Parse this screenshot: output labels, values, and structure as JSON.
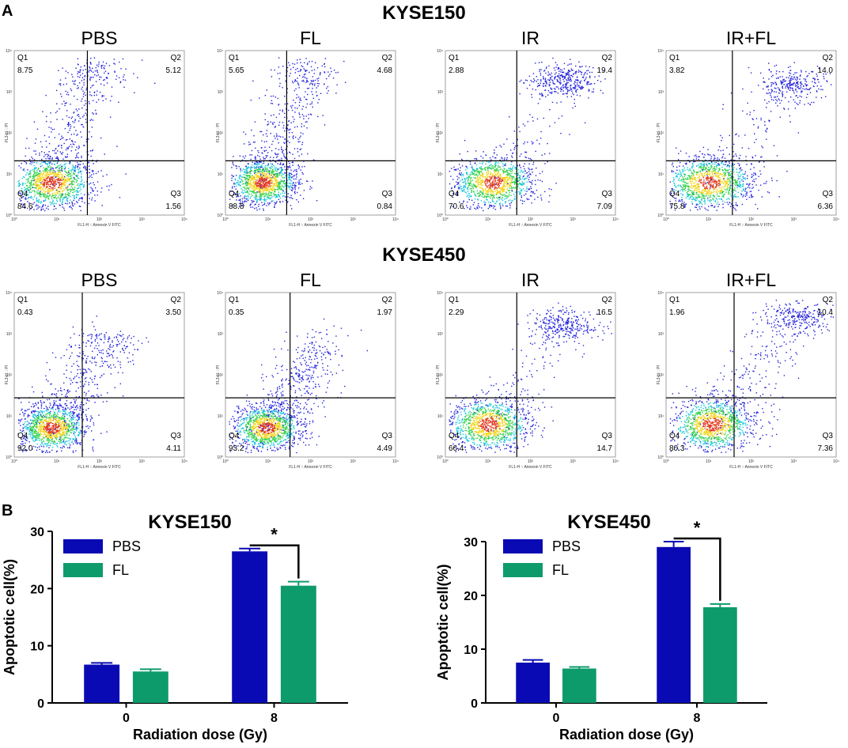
{
  "panel_a_label": "A",
  "panel_b_label": "B",
  "flow_axis": {
    "xlabel": "FL1-H :: Annexin V FITC",
    "ylabel": "FL3-H :: PI",
    "ticks": [
      "10⁰",
      "10¹",
      "10²",
      "10³",
      "10⁴"
    ]
  },
  "flow_rows": [
    {
      "title": "KYSE150",
      "plots": [
        {
          "title": "PBS",
          "q1_label": "Q1",
          "q1": "8.75",
          "q2_label": "Q2",
          "q2": "5.12",
          "q3_label": "Q3",
          "q3": "1.56",
          "q4_label": "Q4",
          "q4": "84.6"
        },
        {
          "title": "FL",
          "q1_label": "Q1",
          "q1": "5.65",
          "q2_label": "Q2",
          "q2": "4.68",
          "q3_label": "Q3",
          "q3": "0.84",
          "q4_label": "Q4",
          "q4": "88.8"
        },
        {
          "title": "IR",
          "q1_label": "Q1",
          "q1": "2.88",
          "q2_label": "Q2",
          "q2": "19.4",
          "q3_label": "Q3",
          "q3": "7.09",
          "q4_label": "Q4",
          "q4": "70.6"
        },
        {
          "title": "IR+FL",
          "q1_label": "Q1",
          "q1": "3.82",
          "q2_label": "Q2",
          "q2": "14.0",
          "q3_label": "Q3",
          "q3": "6.36",
          "q4_label": "Q4",
          "q4": "75.8"
        }
      ]
    },
    {
      "title": "KYSE450",
      "plots": [
        {
          "title": "PBS",
          "q1_label": "Q1",
          "q1": "0.43",
          "q2_label": "Q2",
          "q2": "3.50",
          "q3_label": "Q3",
          "q3": "4.11",
          "q4_label": "Q4",
          "q4": "92.0"
        },
        {
          "title": "FL",
          "q1_label": "Q1",
          "q1": "0.35",
          "q2_label": "Q2",
          "q2": "1.97",
          "q3_label": "Q3",
          "q3": "4.49",
          "q4_label": "Q4",
          "q4": "93.2"
        },
        {
          "title": "IR",
          "q1_label": "Q1",
          "q1": "2.29",
          "q2_label": "Q2",
          "q2": "16.5",
          "q3_label": "Q3",
          "q3": "14.7",
          "q4_label": "Q4",
          "q4": "66.4"
        },
        {
          "title": "IR+FL",
          "q1_label": "Q1",
          "q1": "1.96",
          "q2_label": "Q2",
          "q2": "10.4",
          "q3_label": "Q3",
          "q3": "7.36",
          "q4_label": "Q4",
          "q4": "80.3"
        }
      ]
    }
  ],
  "colors": {
    "pbs": "#0a0ab4",
    "fl": "#0e9b6b"
  },
  "chart_data": [
    {
      "type": "bar",
      "title": "KYSE150",
      "categories": [
        "0",
        "8"
      ],
      "series": [
        {
          "name": "PBS",
          "values": [
            6.7,
            26.5
          ],
          "errors": [
            0.3,
            0.5
          ]
        },
        {
          "name": "FL",
          "values": [
            5.5,
            20.5
          ],
          "errors": [
            0.4,
            0.7
          ]
        }
      ],
      "xlabel": "Radiation dose (Gy)",
      "ylabel": "Apoptotic cell(%)",
      "ylim": [
        0,
        30
      ],
      "yticks": [
        "0",
        "10",
        "20",
        "30"
      ],
      "legend": "top-left",
      "significance": "*"
    },
    {
      "type": "bar",
      "title": "KYSE450",
      "categories": [
        "0",
        "8"
      ],
      "series": [
        {
          "name": "PBS",
          "values": [
            7.5,
            29.0
          ],
          "errors": [
            0.5,
            1.0
          ]
        },
        {
          "name": "FL",
          "values": [
            6.4,
            17.8
          ],
          "errors": [
            0.3,
            0.6
          ]
        }
      ],
      "xlabel": "Radiation dose (Gy)",
      "ylabel": "Apoptotic cell(%)",
      "ylim": [
        0,
        30
      ],
      "yticks": [
        "0",
        "10",
        "20",
        "30"
      ],
      "legend": "top-left",
      "significance": "*"
    }
  ]
}
